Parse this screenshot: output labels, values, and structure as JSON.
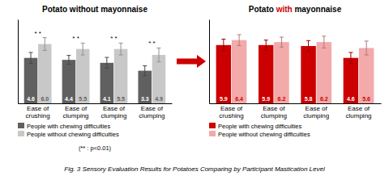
{
  "chart_data": [
    {
      "type": "bar",
      "title": "Potato without mayonnaise",
      "categories": [
        "Ease of\ncrushing",
        "Ease of\nclumping",
        "Ease of\nclumping",
        "Ease of\nclumping"
      ],
      "series": [
        {
          "name": "People with chewing difficulties",
          "color": "#606060",
          "values": [
            4.6,
            4.4,
            4.1,
            3.3
          ],
          "errors": [
            0.55,
            0.45,
            0.55,
            0.5
          ]
        },
        {
          "name": "People without chewing difficulties",
          "color": "#c8c8c8",
          "values": [
            6.0,
            5.5,
            5.5,
            4.9
          ],
          "value_labels": [
            "6.0",
            "5.5",
            "5.5",
            "4.9"
          ],
          "errors": [
            0.65,
            0.6,
            0.6,
            0.7
          ]
        }
      ],
      "annotations": [
        {
          "category": 0,
          "text": "* *"
        },
        {
          "category": 1,
          "text": "* *"
        },
        {
          "category": 2,
          "text": "* *"
        },
        {
          "category": 3,
          "text": "* *"
        }
      ],
      "note": "(** : p<0.01)",
      "caption": "Fig. 3 Sensory Evaluation Results for Potatoes Comparing by Participant Mastication Level",
      "ylim": [
        0,
        8.5
      ],
      "yticks": [],
      "tick_labels": "x",
      "grid": false,
      "legend": "bottom",
      "data_labels": true
    },
    {
      "type": "bar",
      "title": [
        {
          "text": "Potato "
        },
        {
          "text": "with",
          "color": "#cc0000"
        },
        {
          "text": " mayonnaise"
        }
      ],
      "categories": [
        "Ease of\ncrushing",
        "Ease of\nclumping",
        "Ease of\nclumping",
        "Ease of\nclumping"
      ],
      "series": [
        {
          "name": "People with chewing difficulties",
          "color": "#cc0000",
          "values": [
            5.9,
            5.9,
            5.8,
            4.6
          ],
          "errors": [
            0.6,
            0.5,
            0.55,
            0.55
          ]
        },
        {
          "name": "People without chewing difficulties",
          "color": "#f2aaaa",
          "values": [
            6.4,
            6.2,
            6.2,
            5.6
          ],
          "errors": [
            0.55,
            0.5,
            0.6,
            0.7
          ]
        }
      ],
      "ylim": [
        0,
        8.5
      ],
      "yticks": [],
      "tick_labels": "x",
      "grid": false,
      "legend": "bottom",
      "data_labels": true
    }
  ]
}
